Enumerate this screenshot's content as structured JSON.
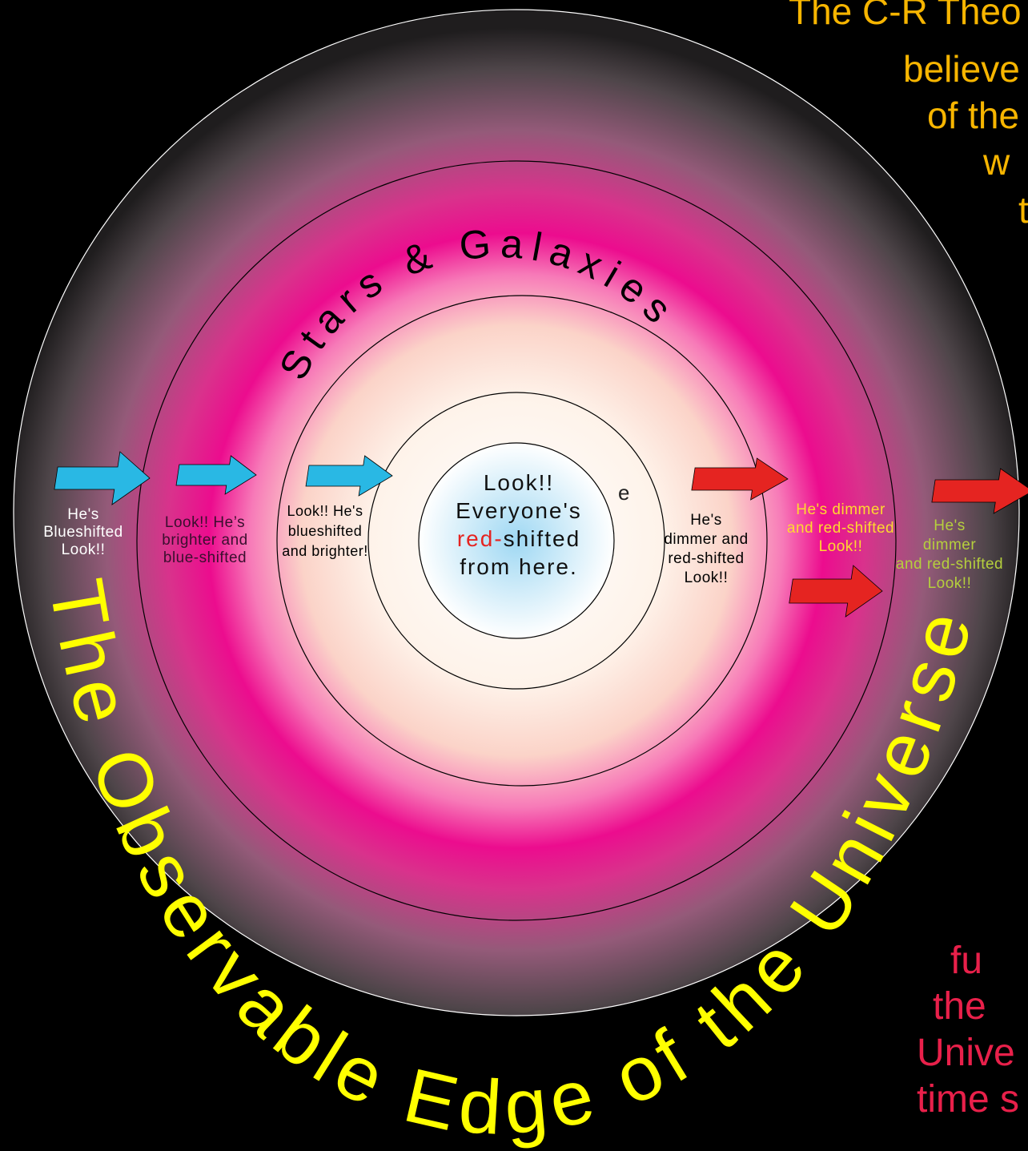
{
  "corner_text": {
    "lines": [
      "The C-R Theo",
      "believe",
      "of the",
      "w",
      "t"
    ]
  },
  "bottom_right_text": {
    "lines": [
      "fu",
      "the",
      "Unive",
      "time s"
    ]
  },
  "arc_labels": {
    "stars": "Stars & Galaxies",
    "edge": "The Observable Edge of the Universe"
  },
  "stray_text": "e",
  "center": {
    "lines": [
      "Look!!",
      "Everyone's"
    ],
    "highlight": "red-",
    "highlight_rest": "shifted",
    "last": "from here."
  },
  "labels": [
    {
      "lines": [
        "He's",
        "Blueshifted",
        "Look!!"
      ]
    },
    {
      "lines": [
        "Look!! He’s",
        "brighter and",
        "blue-shifted"
      ]
    },
    {
      "lines": [
        "Look!! He's",
        "blueshifted",
        "and brighter!"
      ]
    },
    {
      "lines": [
        "He's",
        "dimmer and",
        "red-shifted",
        "Look!!"
      ]
    },
    {
      "lines": [
        "He's dimmer",
        "and red-shifted",
        "Look!!"
      ]
    },
    {
      "lines": [
        "He's",
        "dimmer",
        "and red-shifted",
        "Look!!"
      ]
    }
  ]
}
